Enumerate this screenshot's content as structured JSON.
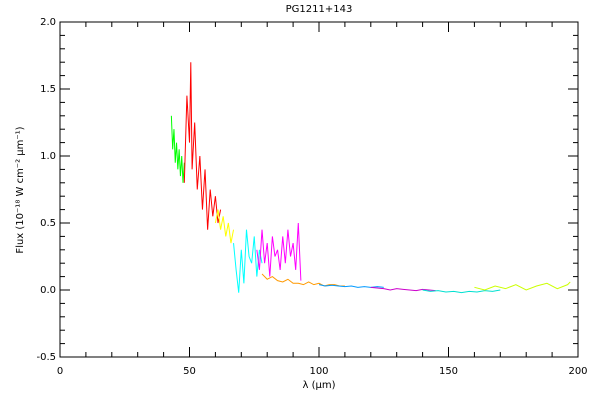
{
  "chart_data": {
    "type": "line",
    "title": "PG1211+143",
    "xlabel": "λ (μm)",
    "ylabel": "Flux (10⁻¹⁸ W cm⁻² μm⁻¹)",
    "xlim": [
      0,
      200
    ],
    "xticks": [
      0,
      50,
      100,
      150,
      200
    ],
    "ylim": [
      -0.5,
      2.0
    ],
    "yticks": [
      -0.5,
      {
        "value": 0.0,
        "label": "0.0"
      },
      0.5,
      {
        "value": 1.0,
        "label": "1.0"
      },
      1.5,
      {
        "value": 2.0,
        "label": "2.0"
      }
    ],
    "series": [
      {
        "color": "#00ff00",
        "x": [
          43,
          43.5,
          44,
          44.5,
          45,
          45.5,
          46,
          46.5,
          47,
          47.5,
          48
        ],
        "values": [
          1.3,
          1.05,
          1.2,
          0.95,
          1.1,
          0.9,
          1.05,
          0.85,
          1.0,
          0.8,
          0.95
        ]
      },
      {
        "color": "#ff0000",
        "x": [
          48,
          49,
          50,
          50.5,
          51,
          52,
          53,
          54,
          55,
          56,
          57,
          58,
          59,
          60,
          61,
          62
        ],
        "values": [
          0.8,
          1.45,
          1.1,
          1.7,
          0.9,
          1.25,
          0.75,
          1.0,
          0.6,
          0.9,
          0.45,
          0.75,
          0.55,
          0.7,
          0.5,
          0.6
        ]
      },
      {
        "color": "#ffff00",
        "x": [
          60,
          61,
          62,
          63,
          64,
          65,
          66,
          67
        ],
        "values": [
          0.5,
          0.6,
          0.45,
          0.55,
          0.4,
          0.5,
          0.35,
          0.45
        ]
      },
      {
        "color": "#00ffff",
        "x": [
          67,
          68,
          69,
          70,
          71,
          72,
          73,
          74,
          75,
          76,
          77,
          78
        ],
        "values": [
          0.35,
          0.15,
          -0.02,
          0.3,
          0.05,
          0.45,
          0.25,
          0.2,
          0.4,
          0.1,
          0.3,
          0.2
        ]
      },
      {
        "color": "#ff00ff",
        "x": [
          76,
          77,
          78,
          79,
          80,
          81,
          82,
          83,
          84,
          85,
          86,
          87,
          88,
          89,
          90,
          91,
          92,
          93
        ],
        "values": [
          0.3,
          0.15,
          0.45,
          0.2,
          0.35,
          0.1,
          0.4,
          0.25,
          0.3,
          0.15,
          0.4,
          0.2,
          0.45,
          0.25,
          0.35,
          0.15,
          0.5,
          0.07
        ]
      },
      {
        "color": "#ff9900",
        "x": [
          78,
          80,
          82,
          84,
          86,
          88,
          90,
          92,
          94,
          96,
          98,
          100,
          102,
          104,
          106,
          108,
          110
        ],
        "values": [
          0.12,
          0.08,
          0.1,
          0.07,
          0.06,
          0.08,
          0.05,
          0.05,
          0.04,
          0.06,
          0.04,
          0.05,
          0.03,
          0.04,
          0.04,
          0.03,
          0.03
        ]
      },
      {
        "color": "#0099ff",
        "x": [
          100,
          102.5,
          105,
          107.5,
          110,
          112.5,
          115,
          117.5,
          120,
          122.5,
          125
        ],
        "values": [
          0.04,
          0.03,
          0.035,
          0.03,
          0.025,
          0.03,
          0.02,
          0.025,
          0.02,
          0.025,
          0.02
        ]
      },
      {
        "color": "#cc00cc",
        "x": [
          120,
          122.5,
          125,
          127.5,
          130,
          132.5,
          135,
          137.5,
          140,
          142.5,
          145
        ],
        "values": [
          0.02,
          0.015,
          0.01,
          0.0,
          0.01,
          0.005,
          0.0,
          -0.005,
          0.005,
          0.0,
          -0.005
        ]
      },
      {
        "color": "#00e0d0",
        "x": [
          140,
          143,
          146,
          149,
          152,
          155,
          158,
          161,
          164,
          167,
          170
        ],
        "values": [
          0.0,
          -0.01,
          -0.005,
          -0.015,
          -0.01,
          -0.02,
          -0.01,
          -0.015,
          -0.005,
          -0.01,
          0.0
        ]
      },
      {
        "color": "#ccff00",
        "x": [
          160,
          164,
          168,
          172,
          176,
          180,
          184,
          188,
          192,
          196,
          197
        ],
        "values": [
          0.02,
          0.0,
          0.03,
          0.01,
          0.04,
          0.0,
          0.03,
          0.05,
          0.01,
          0.04,
          0.06
        ]
      }
    ]
  }
}
